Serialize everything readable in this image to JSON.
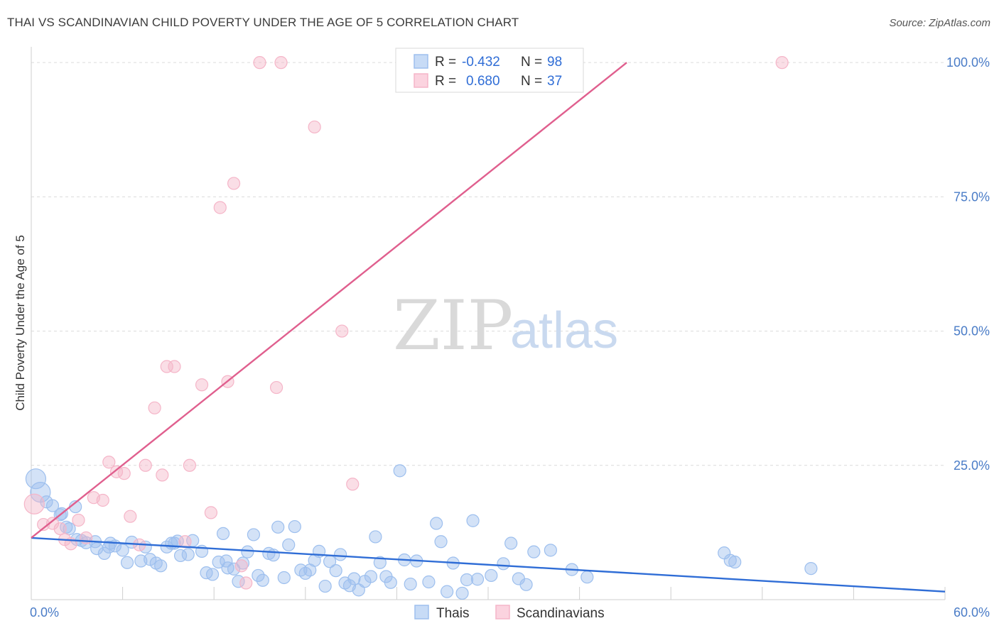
{
  "header": {
    "title": "THAI VS SCANDINAVIAN CHILD POVERTY UNDER THE AGE OF 5 CORRELATION CHART",
    "source": "Source: ZipAtlas.com"
  },
  "watermark": {
    "zip": "ZIP",
    "atlas": "atlas"
  },
  "chart_data": {
    "type": "scatter",
    "title": "THAI VS SCANDINAVIAN CHILD POVERTY UNDER THE AGE OF 5 CORRELATION CHART",
    "xlabel": "",
    "ylabel": "Child Poverty Under the Age of 5",
    "xlim": [
      0,
      60
    ],
    "ylim": [
      0,
      102
    ],
    "x_tick_labels": [
      "0.0%",
      "60.0%"
    ],
    "y_ticks": [
      25,
      50,
      75,
      100
    ],
    "y_tick_labels": [
      "25.0%",
      "50.0%",
      "75.0%",
      "100.0%"
    ],
    "grid": true,
    "legend_position": "top-center",
    "series": [
      {
        "name": "Thais",
        "color": "#9dbfee",
        "line_color": "#2f6dd6",
        "r": "-0.432",
        "n": "98",
        "trend": {
          "x": [
            0,
            60
          ],
          "y": [
            11.5,
            1.5
          ]
        },
        "points": [
          [
            0.3,
            22.5
          ],
          [
            0.6,
            20
          ],
          [
            1,
            18.2
          ],
          [
            1.4,
            17.5
          ],
          [
            1.9,
            15.8
          ],
          [
            2.5,
            13.2
          ],
          [
            2.9,
            17.3
          ],
          [
            2.3,
            13.5
          ],
          [
            3.3,
            11
          ],
          [
            3.6,
            10.6
          ],
          [
            4.2,
            10.8
          ],
          [
            4.3,
            9.5
          ],
          [
            4.8,
            8.6
          ],
          [
            5.2,
            10.5
          ],
          [
            5.5,
            10
          ],
          [
            6,
            9.2
          ],
          [
            6.3,
            6.9
          ],
          [
            6.6,
            10.7
          ],
          [
            7.2,
            7.2
          ],
          [
            7.5,
            9.8
          ],
          [
            7.8,
            7.5
          ],
          [
            8.2,
            6.8
          ],
          [
            8.5,
            6.3
          ],
          [
            8.9,
            9.8
          ],
          [
            9.2,
            10.5
          ],
          [
            9.6,
            10.9
          ],
          [
            9.8,
            8.2
          ],
          [
            10.3,
            8.4
          ],
          [
            10.6,
            11
          ],
          [
            11.2,
            9
          ],
          [
            11.5,
            5
          ],
          [
            11.9,
            4.7
          ],
          [
            12.3,
            7
          ],
          [
            12.6,
            12.3
          ],
          [
            12.9,
            5.9
          ],
          [
            13.3,
            5.7
          ],
          [
            13.6,
            3.4
          ],
          [
            13.9,
            6.8
          ],
          [
            14.2,
            8.9
          ],
          [
            14.6,
            12.1
          ],
          [
            14.9,
            4.5
          ],
          [
            15.2,
            3.6
          ],
          [
            15.6,
            8.6
          ],
          [
            15.9,
            8.3
          ],
          [
            16.2,
            13.5
          ],
          [
            16.6,
            4.1
          ],
          [
            16.9,
            10.2
          ],
          [
            17.3,
            13.6
          ],
          [
            17.7,
            5.5
          ],
          [
            18,
            4.9
          ],
          [
            18.3,
            5.5
          ],
          [
            18.6,
            7.3
          ],
          [
            18.9,
            9
          ],
          [
            19.3,
            2.5
          ],
          [
            19.6,
            7.1
          ],
          [
            20,
            5.4
          ],
          [
            20.3,
            8.4
          ],
          [
            20.6,
            3.1
          ],
          [
            20.9,
            2.6
          ],
          [
            21.2,
            3.9
          ],
          [
            21.5,
            1.8
          ],
          [
            21.9,
            3.4
          ],
          [
            22.3,
            4.3
          ],
          [
            22.6,
            11.7
          ],
          [
            22.9,
            6.9
          ],
          [
            23.3,
            4.3
          ],
          [
            23.6,
            3.2
          ],
          [
            24.2,
            24
          ],
          [
            24.5,
            7.4
          ],
          [
            24.9,
            2.9
          ],
          [
            25.3,
            7.2
          ],
          [
            26.1,
            3.3
          ],
          [
            26.6,
            14.2
          ],
          [
            26.9,
            10.8
          ],
          [
            27.3,
            1.5
          ],
          [
            27.7,
            6.8
          ],
          [
            28.3,
            1.2
          ],
          [
            28.6,
            3.7
          ],
          [
            29,
            14.7
          ],
          [
            29.3,
            3.8
          ],
          [
            30.2,
            4.5
          ],
          [
            31,
            6.7
          ],
          [
            31.5,
            10.5
          ],
          [
            32,
            3.9
          ],
          [
            32.5,
            2.8
          ],
          [
            33,
            8.9
          ],
          [
            34.1,
            9.2
          ],
          [
            35.5,
            5.6
          ],
          [
            36.5,
            4.2
          ],
          [
            45.5,
            8.7
          ],
          [
            45.9,
            7.3
          ],
          [
            46.2,
            7
          ],
          [
            51.2,
            5.8
          ],
          [
            2,
            16
          ],
          [
            5.1,
            9.8
          ],
          [
            3,
            11.2
          ],
          [
            12.8,
            7.2
          ],
          [
            9.4,
            10.5
          ]
        ]
      },
      {
        "name": "Scandinavians",
        "color": "#f5b5c8",
        "line_color": "#e05f8e",
        "r": "0.680",
        "n": "37",
        "trend": {
          "x": [
            0,
            39.1
          ],
          "y": [
            11.5,
            100
          ]
        },
        "points": [
          [
            0.2,
            17.8
          ],
          [
            0.8,
            14
          ],
          [
            1.4,
            14.2
          ],
          [
            1.9,
            13.2
          ],
          [
            2.2,
            11.2
          ],
          [
            2.6,
            10.4
          ],
          [
            3.1,
            14.8
          ],
          [
            3.6,
            11.5
          ],
          [
            4.1,
            19
          ],
          [
            4.7,
            18.5
          ],
          [
            5.1,
            25.6
          ],
          [
            5.6,
            23.8
          ],
          [
            6.1,
            23.5
          ],
          [
            6.5,
            15.5
          ],
          [
            7.1,
            10.2
          ],
          [
            7.5,
            25
          ],
          [
            8.1,
            35.7
          ],
          [
            8.6,
            23.2
          ],
          [
            8.9,
            43.4
          ],
          [
            9.4,
            43.4
          ],
          [
            10.1,
            10.8
          ],
          [
            10.4,
            25
          ],
          [
            11.2,
            40
          ],
          [
            11.8,
            16.2
          ],
          [
            12.4,
            73
          ],
          [
            12.9,
            40.6
          ],
          [
            13.3,
            77.5
          ],
          [
            13.8,
            6.3
          ],
          [
            14.1,
            3.1
          ],
          [
            15,
            100
          ],
          [
            16.1,
            39.5
          ],
          [
            16.4,
            100
          ],
          [
            18.6,
            88
          ],
          [
            20.4,
            50
          ],
          [
            21.1,
            21.5
          ],
          [
            24.8,
            100
          ],
          [
            49.3,
            100
          ]
        ]
      }
    ]
  }
}
